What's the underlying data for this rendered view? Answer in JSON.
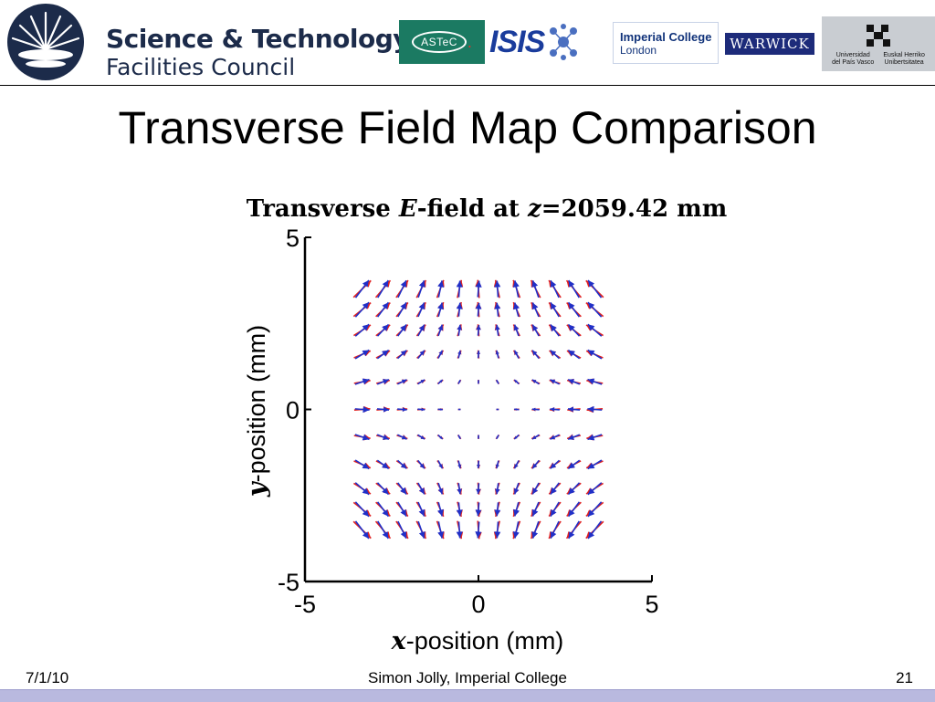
{
  "header": {
    "stfc_line1": "Science & Technology",
    "stfc_line2": "Facilities Council",
    "astec_label": "ASTeC",
    "isis_label": "ISIS",
    "imperial_line1": "Imperial College",
    "imperial_line2": "London",
    "warwick_label": "WARWICK",
    "upv_left": "Universidad\ndel País Vasco",
    "upv_right": "Euskal Herriko\nUnibertsitatea",
    "colors": {
      "stfc_navy": "#1c2b4a",
      "astec_green": "#1b7a62",
      "isis_blue": "#1a3c9c",
      "warwick_blue": "#1d2b7a"
    }
  },
  "slide": {
    "title": "Transverse Field Map Comparison"
  },
  "chart_data": {
    "type": "quiver",
    "title": "Transverse E-field at z=2059.42 mm",
    "title_parts": [
      "Transverse ",
      "E",
      "-field at ",
      "z",
      "=2059.42 mm"
    ],
    "xlabel_parts": [
      "x",
      "-position (mm)"
    ],
    "ylabel_parts": [
      "y",
      "-position (mm)"
    ],
    "xlim": [
      -5,
      5
    ],
    "ylim": [
      -5,
      5
    ],
    "xticks": [
      "-5",
      "0",
      "5"
    ],
    "yticks": [
      "-5",
      "0",
      "5"
    ],
    "grid_x": [
      -3.35,
      -2.75,
      -2.2,
      -1.65,
      -1.1,
      -0.55,
      0,
      0.55,
      1.1,
      1.65,
      2.2,
      2.75,
      3.35
    ],
    "grid_y": [
      3.5,
      2.9,
      2.3,
      1.6,
      0.8,
      0,
      -0.8,
      -1.6,
      -2.3,
      -2.9,
      -3.5
    ],
    "vector_model": "field proportional to (-x, y) quadrupole pattern, scaled",
    "series": [
      {
        "color": "#e02020",
        "scale": 1.05
      },
      {
        "color": "#2030c8",
        "scale": 0.95
      }
    ]
  },
  "footer": {
    "date": "7/1/10",
    "author": "Simon Jolly, Imperial College",
    "page": "21"
  }
}
